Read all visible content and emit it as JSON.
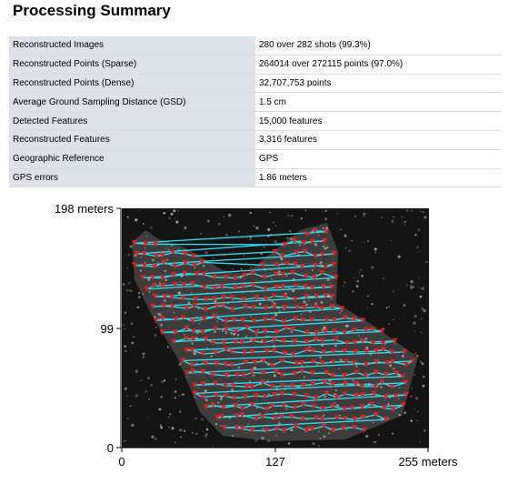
{
  "summary": {
    "title": "Processing Summary",
    "rows": [
      {
        "label": "Reconstructed Images",
        "value": "280 over 282 shots (99.3%)"
      },
      {
        "label": "Reconstructed Points (Sparse)",
        "value": "264014 over 272115 points (97.0%)"
      },
      {
        "label": "Reconstructed Points (Dense)",
        "value": "32,707,753 points"
      },
      {
        "label": "Average Ground Sampling Distance (GSD)",
        "value": "1.5 cm"
      },
      {
        "label": "Detected Features",
        "value": "15,000 features"
      },
      {
        "label": "Reconstructed Features",
        "value": "3,316 features"
      },
      {
        "label": "Geographic Reference",
        "value": "GPS"
      },
      {
        "label": "GPS errors",
        "value": "1.86 meters"
      }
    ]
  },
  "figure": {
    "y_ticks": [
      "198 meters",
      "99",
      "0"
    ],
    "x_ticks": [
      "0",
      "127",
      "255 meters"
    ],
    "colors": {
      "path": "#33d6e6",
      "camera": "#e02020",
      "ground": "#141414"
    }
  }
}
